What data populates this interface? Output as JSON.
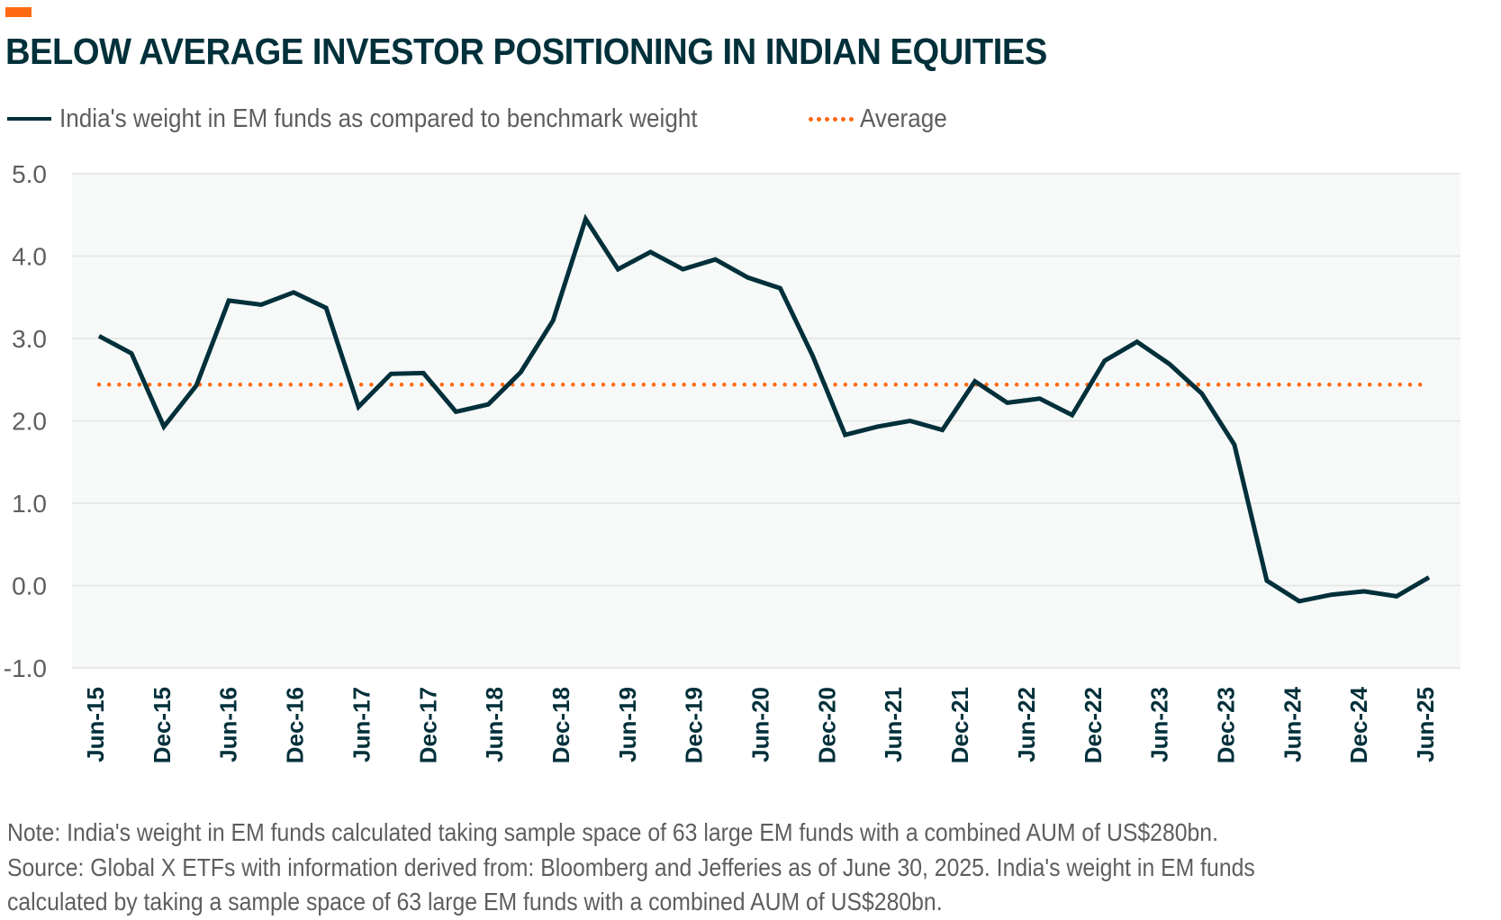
{
  "header": {
    "title": "BELOW AVERAGE INVESTOR POSITIONING IN INDIAN EQUITIES",
    "accent_color": "#ff6a13"
  },
  "legend": {
    "items": [
      {
        "label": "India's weight in EM funds as compared to benchmark weight",
        "style": "solid-line",
        "color": "#00303a"
      },
      {
        "label": "Average",
        "style": "dotted-line",
        "color": "#ff6a13"
      }
    ]
  },
  "chart_data": {
    "type": "line",
    "title": "BELOW AVERAGE INVESTOR POSITIONING IN INDIAN EQUITIES",
    "xlabel": "",
    "ylabel": "",
    "ylim": [
      -1.0,
      5.0
    ],
    "yticks": [
      "5.0",
      "4.0",
      "3.0",
      "2.0",
      "1.0",
      "0.0",
      "-1.0"
    ],
    "ytick_values": [
      5,
      4,
      3,
      2,
      1,
      0,
      -1
    ],
    "grid": true,
    "legend_position": "top-left",
    "x_tick_labels": [
      "Jun-15",
      "Dec-15",
      "Jun-16",
      "Dec-16",
      "Jun-17",
      "Dec-17",
      "Jun-18",
      "Dec-18",
      "Jun-19",
      "Dec-19",
      "Jun-20",
      "Dec-20",
      "Jun-21",
      "Dec-21",
      "Jun-22",
      "Dec-22",
      "Jun-23",
      "Dec-23",
      "Jun-24",
      "Dec-24",
      "Jun-25"
    ],
    "series": [
      {
        "name": "India's weight in EM funds as compared to benchmark weight",
        "color": "#00303a",
        "values": [
          3.03,
          2.82,
          1.93,
          2.43,
          3.46,
          3.41,
          3.56,
          3.37,
          2.17,
          2.57,
          2.58,
          2.11,
          2.2,
          2.59,
          3.22,
          4.45,
          3.84,
          4.05,
          3.84,
          3.96,
          3.74,
          3.61,
          2.79,
          1.83,
          1.93,
          2.0,
          1.89,
          2.48,
          2.22,
          2.27,
          2.07,
          2.73,
          2.96,
          2.69,
          2.33,
          1.71,
          0.06,
          -0.19,
          -0.11,
          -0.07,
          -0.13,
          0.1
        ]
      },
      {
        "name": "Average",
        "color": "#ff6a13",
        "style": "dotted",
        "value": 2.44
      }
    ]
  },
  "notes": {
    "lines": [
      "Note: India's weight in EM funds calculated taking sample space of 63 large EM funds with a combined AUM of US$280bn.",
      "Source: Global X ETFs with information derived from: Bloomberg and Jefferies as of June 30, 2025. India's weight in EM funds",
      "calculated by taking a sample space of 63 large EM funds with a combined AUM of US$280bn."
    ]
  }
}
